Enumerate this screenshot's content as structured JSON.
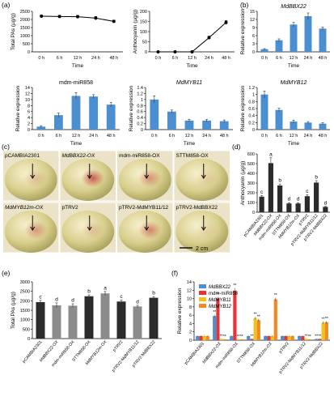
{
  "panel_labels": {
    "a": "(a)",
    "b": "(b)",
    "c": "(c)",
    "d": "(d)",
    "e": "(e)",
    "f": "(f)"
  },
  "photo_panel": {
    "labels": [
      "pCAMBIA2301",
      "MdBBX22-OX",
      "mdm-miR858-OX",
      "STTM858-OX",
      "MdMYB12m-OX",
      "pTRV2",
      "pTRV2-MdMYB11/12",
      "pTRV2-MdBBX22"
    ],
    "scale_bar": "2 cm"
  },
  "colors": {
    "bar_blue": "#4c8fd1",
    "bar_dark": "#2b2b2b",
    "bar_grey": "#8c8c8c",
    "red": "#e2353a",
    "orange": "#f08a24",
    "gold": "#f4c11a",
    "apple_green": "#b8b06a",
    "apple_red": "#c8514c"
  },
  "chart_data": [
    {
      "id": "a1",
      "type": "line",
      "ylabel": "Total PAs (µg/g)",
      "xlabel": "Time",
      "categories": [
        "0 h",
        "6 h",
        "12 h",
        "24 h",
        "48 h"
      ],
      "ylim": [
        0,
        2500
      ],
      "yticks": [
        0,
        500,
        1000,
        1500,
        2000,
        2500
      ],
      "values": [
        2200,
        2180,
        2170,
        2080,
        1880
      ],
      "errors": [
        80,
        80,
        80,
        100,
        80
      ]
    },
    {
      "id": "a2",
      "type": "line",
      "ylabel": "Anthocyanin (µg/g)",
      "xlabel": "Time",
      "categories": [
        "0 h",
        "6 h",
        "12 h",
        "24 h",
        "48 h"
      ],
      "ylim": [
        0,
        200
      ],
      "yticks": [
        0,
        50,
        100,
        150,
        200
      ],
      "values": [
        0,
        0,
        0,
        70,
        145
      ],
      "errors": [
        0,
        0,
        0,
        8,
        10
      ]
    },
    {
      "id": "b1",
      "type": "bar",
      "title": "MdBBX22",
      "ylabel": "Relative expression",
      "xlabel": "Time",
      "categories": [
        "0 h",
        "6 h",
        "12 h",
        "24 h",
        "48 h"
      ],
      "ylim": [
        0,
        15
      ],
      "yticks": [
        0,
        3,
        6,
        9,
        12,
        15
      ],
      "values": [
        1,
        4.3,
        10.1,
        13.2,
        8.6
      ],
      "errors": [
        0.2,
        0.5,
        0.8,
        1.2,
        0.6
      ]
    },
    {
      "id": "b2",
      "type": "bar",
      "title": "mdm-miR858",
      "ylabel": "Relative expression",
      "xlabel": "Time",
      "categories": [
        "0 h",
        "6 h",
        "12 h",
        "24 h",
        "48 h"
      ],
      "ylim": [
        0,
        14
      ],
      "yticks": [
        0,
        2,
        4,
        6,
        8,
        10,
        12,
        14
      ],
      "values": [
        1,
        4.8,
        11.2,
        11.0,
        8.3
      ],
      "errors": [
        0.3,
        0.7,
        1.1,
        0.6,
        0.7
      ]
    },
    {
      "id": "b3",
      "type": "bar",
      "title": "MdMYB11",
      "ylabel": "Relative expression",
      "xlabel": "Time",
      "categories": [
        "0 h",
        "6 h",
        "12 h",
        "24 h",
        "48 h"
      ],
      "ylim": [
        0,
        1.4
      ],
      "yticks": [
        0,
        0.2,
        0.4,
        0.6,
        0.8,
        1.0,
        1.2,
        1.4
      ],
      "values": [
        1.0,
        0.6,
        0.3,
        0.3,
        0.28
      ],
      "errors": [
        0.12,
        0.05,
        0.04,
        0.04,
        0.04
      ]
    },
    {
      "id": "b4",
      "type": "bar",
      "title": "MdMYB12",
      "ylabel": "Relative expression",
      "xlabel": "Time",
      "categories": [
        "0 h",
        "6 h",
        "12 h",
        "24 h",
        "48 h"
      ],
      "ylim": [
        0,
        1.2
      ],
      "yticks": [
        0,
        0.2,
        0.4,
        0.6,
        0.8,
        1.0,
        1.2
      ],
      "values": [
        1.0,
        0.56,
        0.23,
        0.2,
        0.17
      ],
      "errors": [
        0.1,
        0.05,
        0.04,
        0.03,
        0.03
      ]
    },
    {
      "id": "d",
      "type": "bar",
      "ylabel": "Anthocyanin (µg/g)",
      "categories": [
        "pCAMBIA2301",
        "MdBBX22-OX",
        "mdm-miR858-OX",
        "STTM858-OX",
        "MdMYB12m-OX",
        "pTRV2",
        "pTRV2-MdMYB11/12",
        "pTRV2-MdBBX22"
      ],
      "ylim": [
        0,
        600
      ],
      "yticks": [
        0,
        100,
        200,
        300,
        400,
        500,
        600
      ],
      "values": [
        160,
        505,
        275,
        90,
        90,
        165,
        305,
        55
      ],
      "errors": [
        12,
        55,
        15,
        8,
        8,
        15,
        20,
        5
      ],
      "letters": [
        "c",
        "a",
        "b",
        "d",
        "d",
        "c",
        "b",
        "d"
      ],
      "colors": [
        "#2b2b2b",
        "#2b2b2b",
        "#2b2b2b",
        "#2b2b2b",
        "#2b2b2b",
        "#2b2b2b",
        "#2b2b2b",
        "#2b2b2b"
      ]
    },
    {
      "id": "e",
      "type": "bar",
      "ylabel": "Total PAs (µg/g)",
      "categories": [
        "pCAMBIA2301",
        "MdBBX22-OX",
        "mdm-miR858-OX",
        "STTM858-OX",
        "MdMYB12m-OX",
        "pTRV2",
        "pTRV2-MdMYB11/12",
        "pTRV2-MdBBX22"
      ],
      "ylim": [
        0,
        3000
      ],
      "yticks": [
        0,
        500,
        1000,
        1500,
        2000,
        2500,
        3000
      ],
      "values": [
        1930,
        1760,
        1740,
        2240,
        2390,
        1960,
        1700,
        2160
      ],
      "errors": [
        90,
        130,
        100,
        70,
        100,
        80,
        60,
        60
      ],
      "letters": [
        "c",
        "d",
        "d",
        "b",
        "a",
        "c",
        "d",
        "b"
      ],
      "colors": [
        "#2b2b2b",
        "#8c8c8c",
        "#8c8c8c",
        "#2b2b2b",
        "#8c8c8c",
        "#2b2b2b",
        "#8c8c8c",
        "#2b2b2b"
      ]
    },
    {
      "id": "f",
      "type": "bar",
      "ylabel": "Relative expression",
      "categories": [
        "pCAMBIA2301",
        "MdBBX22-OX",
        "mdm-miR858-OX",
        "STTM858-OX",
        "MdMYB12m-OX",
        "pTRV2",
        "pTRV2-MdMYB11/12",
        "pTRV2-MdBBX22"
      ],
      "ylim": [
        0,
        14
      ],
      "yticks": [
        0,
        2,
        4,
        6,
        8,
        10,
        12,
        14
      ],
      "series": [
        {
          "name": "MdBBX22",
          "color": "#4c8fd1",
          "values": [
            1,
            5.8,
            1,
            1,
            1,
            1,
            1,
            0.3
          ],
          "errors": [
            0.1,
            0.3,
            0.1,
            0.1,
            0.1,
            0.1,
            0.1,
            0.05
          ],
          "stars": [
            "",
            "**",
            "",
            "",
            "",
            "",
            "",
            "**"
          ]
        },
        {
          "name": "mdm-miR858",
          "color": "#e2353a",
          "values": [
            1,
            10.0,
            11.9,
            0.3,
            1,
            1,
            1,
            0.3
          ],
          "errors": [
            0.1,
            0.4,
            0.6,
            0.05,
            0.1,
            0.1,
            0.1,
            0.05
          ],
          "stars": [
            "",
            "**",
            "**",
            "**",
            "",
            "",
            "",
            "**"
          ]
        },
        {
          "name": "MdMYB11",
          "color": "#f4c11a",
          "values": [
            1,
            0.3,
            0.2,
            5.3,
            1,
            1,
            0.3,
            4.2
          ],
          "errors": [
            0.1,
            0.05,
            0.05,
            0.3,
            0.1,
            0.1,
            0.05,
            0.3
          ],
          "stars": [
            "",
            "**",
            "**",
            "**",
            "",
            "",
            "**",
            "**"
          ]
        },
        {
          "name": "MdMYB12",
          "color": "#f08a24",
          "values": [
            1,
            0.2,
            0.2,
            4.8,
            9.8,
            1,
            0.2,
            4.3
          ],
          "errors": [
            0.1,
            0.05,
            0.05,
            0.3,
            0.4,
            0.1,
            0.05,
            0.3
          ],
          "stars": [
            "",
            "**",
            "**",
            "**",
            "**",
            "",
            "**",
            "**"
          ]
        }
      ]
    }
  ]
}
